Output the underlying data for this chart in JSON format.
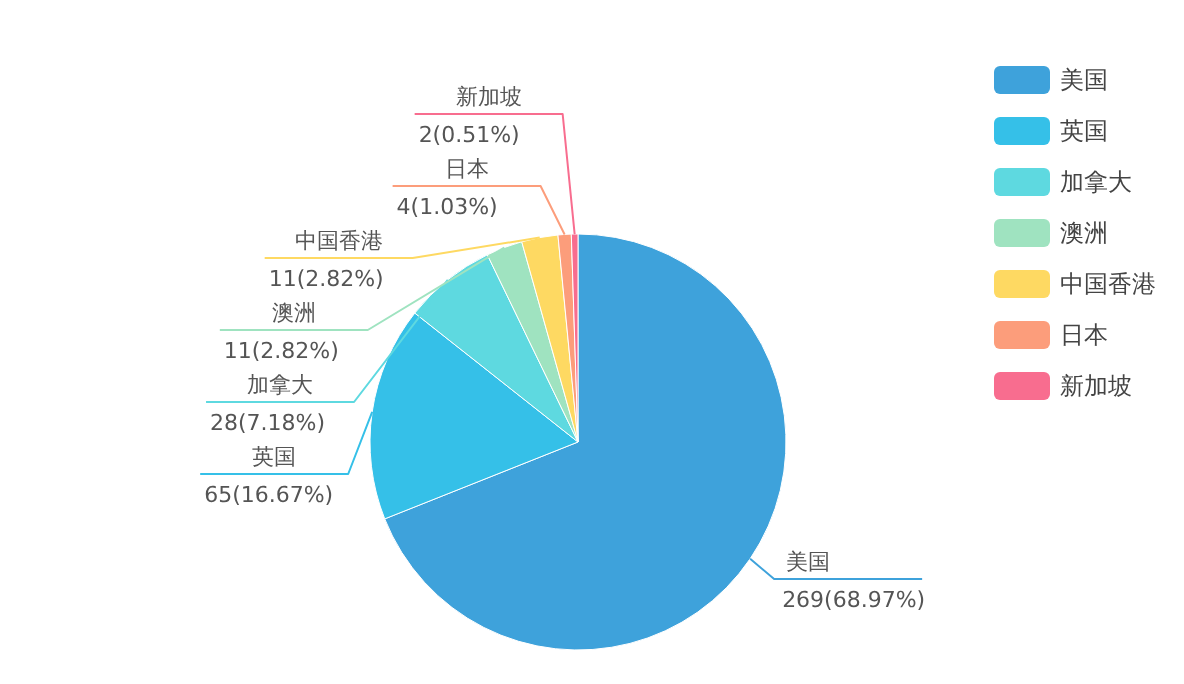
{
  "chart_data": {
    "type": "pie",
    "categories": [
      "美国",
      "英国",
      "加拿大",
      "澳洲",
      "中国香港",
      "日本",
      "新加坡"
    ],
    "values": [
      269,
      65,
      28,
      11,
      11,
      4,
      2
    ],
    "value_labels": [
      "269(68.97%)",
      "65(16.67%)",
      "28(7.18%)",
      "11(2.82%)",
      "11(2.82%)",
      "4(1.03%)",
      "2(0.51%)"
    ],
    "colors": [
      "#3ea2db",
      "#35c0e8",
      "#5ed9e0",
      "#9fe3c0",
      "#fed962",
      "#fc9d7b",
      "#f86d8f"
    ],
    "legend": "right"
  }
}
